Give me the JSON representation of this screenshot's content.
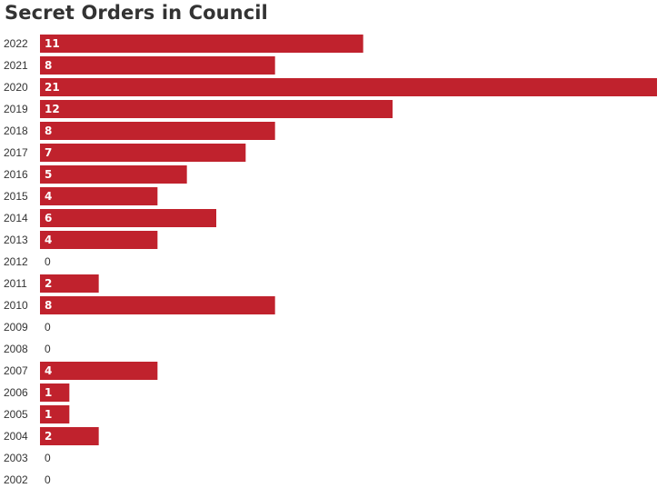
{
  "chart_data": {
    "type": "bar",
    "orientation": "horizontal",
    "title": "Secret Orders in Council",
    "xlabel": "",
    "ylabel": "",
    "categories": [
      "2022",
      "2021",
      "2020",
      "2019",
      "2018",
      "2017",
      "2016",
      "2015",
      "2014",
      "2013",
      "2012",
      "2011",
      "2010",
      "2009",
      "2008",
      "2007",
      "2006",
      "2005",
      "2004",
      "2003",
      "2002"
    ],
    "values": [
      11,
      8,
      21,
      12,
      8,
      7,
      5,
      4,
      6,
      4,
      0,
      2,
      8,
      0,
      0,
      4,
      1,
      1,
      2,
      0,
      0
    ],
    "xlim": [
      0,
      21
    ],
    "grid": false,
    "legend": "none",
    "data_labels": true,
    "colors": {
      "bar": "#c0222d",
      "label_inside": "#ffffff",
      "label_outside": "#333333",
      "tick_text": "#333333",
      "title": "#333333"
    }
  }
}
